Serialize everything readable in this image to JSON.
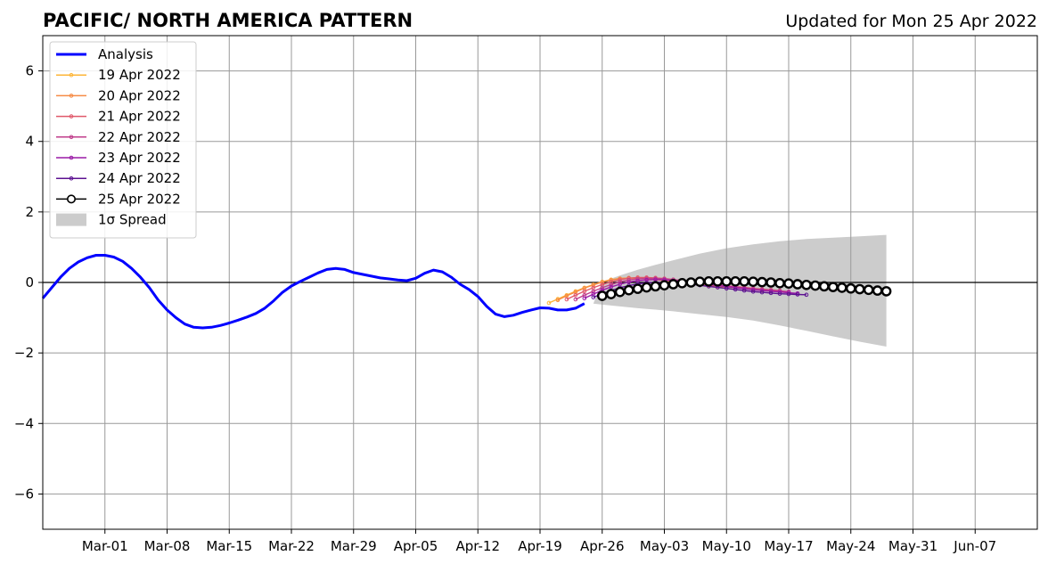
{
  "chart_data": {
    "type": "line",
    "title": "PACIFIC/ NORTH AMERICA PATTERN",
    "subtitle": "Updated for Mon 25 Apr 2022",
    "x_axis": {
      "type": "date",
      "range": [
        "2022-02-22",
        "2022-06-14"
      ],
      "ticks": [
        {
          "date": "2022-03-01",
          "label": "Mar-01"
        },
        {
          "date": "2022-03-08",
          "label": "Mar-08"
        },
        {
          "date": "2022-03-15",
          "label": "Mar-15"
        },
        {
          "date": "2022-03-22",
          "label": "Mar-22"
        },
        {
          "date": "2022-03-29",
          "label": "Mar-29"
        },
        {
          "date": "2022-04-05",
          "label": "Apr-05"
        },
        {
          "date": "2022-04-12",
          "label": "Apr-12"
        },
        {
          "date": "2022-04-19",
          "label": "Apr-19"
        },
        {
          "date": "2022-04-26",
          "label": "Apr-26"
        },
        {
          "date": "2022-05-03",
          "label": "May-03"
        },
        {
          "date": "2022-05-10",
          "label": "May-10"
        },
        {
          "date": "2022-05-17",
          "label": "May-17"
        },
        {
          "date": "2022-05-24",
          "label": "May-24"
        },
        {
          "date": "2022-05-31",
          "label": "May-31"
        },
        {
          "date": "2022-06-07",
          "label": "Jun-07"
        }
      ]
    },
    "y_axis": {
      "range": [
        -7,
        7
      ],
      "ticks": [
        {
          "value": 6,
          "label": "6"
        },
        {
          "value": 4,
          "label": "4"
        },
        {
          "value": 2,
          "label": "2"
        },
        {
          "value": 0,
          "label": "0"
        },
        {
          "value": -2,
          "label": "−2"
        },
        {
          "value": -4,
          "label": "−4"
        },
        {
          "value": -6,
          "label": "−6"
        }
      ]
    },
    "grid": true,
    "legend": {
      "placement": "top-left"
    },
    "analysis": {
      "name": "Analysis",
      "color": "#0000ff",
      "points": [
        [
          "2022-02-22",
          -0.45
        ],
        [
          "2022-02-23",
          -0.15
        ],
        [
          "2022-02-24",
          0.15
        ],
        [
          "2022-02-25",
          0.4
        ],
        [
          "2022-02-26",
          0.58
        ],
        [
          "2022-02-27",
          0.7
        ],
        [
          "2022-02-28",
          0.77
        ],
        [
          "2022-03-01",
          0.77
        ],
        [
          "2022-03-02",
          0.72
        ],
        [
          "2022-03-03",
          0.6
        ],
        [
          "2022-03-04",
          0.4
        ],
        [
          "2022-03-05",
          0.15
        ],
        [
          "2022-03-06",
          -0.15
        ],
        [
          "2022-03-07",
          -0.5
        ],
        [
          "2022-03-08",
          -0.78
        ],
        [
          "2022-03-09",
          -1.0
        ],
        [
          "2022-03-10",
          -1.18
        ],
        [
          "2022-03-11",
          -1.27
        ],
        [
          "2022-03-12",
          -1.29
        ],
        [
          "2022-03-13",
          -1.27
        ],
        [
          "2022-03-14",
          -1.22
        ],
        [
          "2022-03-15",
          -1.15
        ],
        [
          "2022-03-16",
          -1.07
        ],
        [
          "2022-03-17",
          -0.98
        ],
        [
          "2022-03-18",
          -0.88
        ],
        [
          "2022-03-19",
          -0.73
        ],
        [
          "2022-03-20",
          -0.52
        ],
        [
          "2022-03-21",
          -0.28
        ],
        [
          "2022-03-22",
          -0.1
        ],
        [
          "2022-03-23",
          0.03
        ],
        [
          "2022-03-24",
          0.15
        ],
        [
          "2022-03-25",
          0.27
        ],
        [
          "2022-03-26",
          0.37
        ],
        [
          "2022-03-27",
          0.4
        ],
        [
          "2022-03-28",
          0.37
        ],
        [
          "2022-03-29",
          0.28
        ],
        [
          "2022-03-30",
          0.23
        ],
        [
          "2022-03-31",
          0.18
        ],
        [
          "2022-04-01",
          0.13
        ],
        [
          "2022-04-02",
          0.1
        ],
        [
          "2022-04-03",
          0.07
        ],
        [
          "2022-04-04",
          0.05
        ],
        [
          "2022-04-05",
          0.12
        ],
        [
          "2022-04-06",
          0.26
        ],
        [
          "2022-04-07",
          0.35
        ],
        [
          "2022-04-08",
          0.3
        ],
        [
          "2022-04-09",
          0.15
        ],
        [
          "2022-04-10",
          -0.05
        ],
        [
          "2022-04-11",
          -0.2
        ],
        [
          "2022-04-12",
          -0.4
        ],
        [
          "2022-04-13",
          -0.68
        ],
        [
          "2022-04-14",
          -0.9
        ],
        [
          "2022-04-15",
          -0.97
        ],
        [
          "2022-04-16",
          -0.93
        ],
        [
          "2022-04-17",
          -0.85
        ],
        [
          "2022-04-18",
          -0.78
        ],
        [
          "2022-04-19",
          -0.72
        ],
        [
          "2022-04-20",
          -0.73
        ],
        [
          "2022-04-21",
          -0.78
        ],
        [
          "2022-04-22",
          -0.78
        ],
        [
          "2022-04-23",
          -0.73
        ],
        [
          "2022-04-24",
          -0.6
        ]
      ]
    },
    "forecasts": [
      {
        "name": "19 Apr 2022",
        "color": "#fdb537",
        "start": "2022-04-20",
        "values": [
          -0.58,
          -0.47,
          -0.36,
          -0.25,
          -0.15,
          -0.06,
          0.02,
          0.08,
          0.11,
          0.12,
          0.12,
          0.1,
          0.08,
          0.05,
          0.02,
          -0.01,
          -0.04,
          -0.07,
          -0.09,
          -0.11,
          -0.13,
          -0.15,
          -0.17,
          -0.19,
          -0.21
        ]
      },
      {
        "name": "20 Apr 2022",
        "color": "#f68b45",
        "start": "2022-04-21",
        "values": [
          -0.5,
          -0.38,
          -0.27,
          -0.16,
          -0.07,
          0.01,
          0.07,
          0.11,
          0.13,
          0.13,
          0.12,
          0.1,
          0.07,
          0.04,
          0.01,
          -0.02,
          -0.05,
          -0.08,
          -0.1,
          -0.12,
          -0.14,
          -0.16,
          -0.18,
          -0.2,
          -0.22
        ]
      },
      {
        "name": "21 Apr 2022",
        "color": "#e0586a",
        "start": "2022-04-22",
        "values": [
          -0.48,
          -0.36,
          -0.25,
          -0.15,
          -0.06,
          0.02,
          0.08,
          0.12,
          0.14,
          0.14,
          0.13,
          0.11,
          0.08,
          0.05,
          0.02,
          -0.01,
          -0.04,
          -0.07,
          -0.1,
          -0.12,
          -0.14,
          -0.17,
          -0.19,
          -0.21,
          -0.23
        ]
      },
      {
        "name": "22 Apr 2022",
        "color": "#c03d8b",
        "start": "2022-04-23",
        "values": [
          -0.48,
          -0.36,
          -0.25,
          -0.15,
          -0.06,
          0.02,
          0.07,
          0.1,
          0.11,
          0.11,
          0.1,
          0.08,
          0.05,
          0.02,
          -0.01,
          -0.04,
          -0.07,
          -0.1,
          -0.13,
          -0.15,
          -0.18,
          -0.2,
          -0.22,
          -0.24,
          -0.26
        ]
      },
      {
        "name": "23 Apr 2022",
        "color": "#9a1aa6",
        "start": "2022-04-24",
        "values": [
          -0.45,
          -0.33,
          -0.22,
          -0.13,
          -0.05,
          0.01,
          0.05,
          0.07,
          0.08,
          0.07,
          0.05,
          0.03,
          0.0,
          -0.03,
          -0.06,
          -0.09,
          -0.12,
          -0.15,
          -0.18,
          -0.21,
          -0.23,
          -0.25,
          -0.27,
          -0.29,
          -0.31
        ]
      },
      {
        "name": "24 Apr 2022",
        "color": "#5c1191",
        "start": "2022-04-25",
        "values": [
          -0.42,
          -0.32,
          -0.23,
          -0.15,
          -0.09,
          -0.04,
          -0.01,
          0.0,
          0.0,
          -0.01,
          -0.03,
          -0.05,
          -0.08,
          -0.11,
          -0.14,
          -0.17,
          -0.2,
          -0.23,
          -0.26,
          -0.28,
          -0.3,
          -0.32,
          -0.33,
          -0.34,
          -0.35
        ]
      },
      {
        "name": "25 Apr 2022",
        "color": "#000000",
        "start": "2022-04-26",
        "values": [
          -0.38,
          -0.33,
          -0.27,
          -0.22,
          -0.18,
          -0.14,
          -0.11,
          -0.08,
          -0.05,
          -0.02,
          0.0,
          0.02,
          0.03,
          0.03,
          0.03,
          0.03,
          0.03,
          0.02,
          0.01,
          0.0,
          -0.02,
          -0.03,
          -0.05,
          -0.07,
          -0.09,
          -0.11,
          -0.13,
          -0.15,
          -0.17,
          -0.19,
          -0.21,
          -0.23,
          -0.25
        ]
      }
    ],
    "spread": {
      "name": "1σ Spread",
      "color": "#cccccc",
      "points": [
        [
          "2022-04-25",
          -0.6,
          -0.6
        ],
        [
          "2022-04-26",
          -0.63,
          0.02
        ],
        [
          "2022-04-28",
          -0.68,
          0.2
        ],
        [
          "2022-04-30",
          -0.73,
          0.36
        ],
        [
          "2022-05-02",
          -0.77,
          0.5
        ],
        [
          "2022-05-04",
          -0.82,
          0.63
        ],
        [
          "2022-05-07",
          -0.9,
          0.82
        ],
        [
          "2022-05-10",
          -0.98,
          0.97
        ],
        [
          "2022-05-13",
          -1.08,
          1.08
        ],
        [
          "2022-05-16",
          -1.22,
          1.17
        ],
        [
          "2022-05-19",
          -1.37,
          1.23
        ],
        [
          "2022-05-22",
          -1.53,
          1.27
        ],
        [
          "2022-05-25",
          -1.68,
          1.31
        ],
        [
          "2022-05-28",
          -1.82,
          1.35
        ]
      ]
    }
  }
}
